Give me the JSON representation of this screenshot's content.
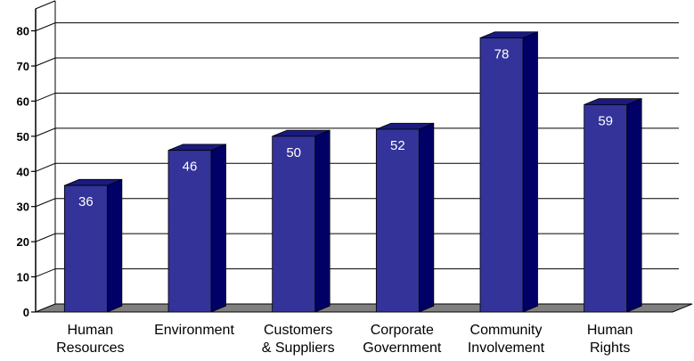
{
  "chart_data": {
    "type": "bar",
    "title": "",
    "xlabel": "",
    "ylabel": "",
    "categories": [
      [
        "Human",
        "Resources"
      ],
      [
        "Environment"
      ],
      [
        "Customers",
        "& Suppliers"
      ],
      [
        "Corporate",
        "Government"
      ],
      [
        "Community",
        "Involvement"
      ],
      [
        "Human",
        "Rights"
      ]
    ],
    "values": [
      36,
      46,
      50,
      52,
      78,
      59
    ],
    "data_labels": [
      "36",
      "46",
      "50",
      "52",
      "78",
      "59"
    ],
    "ylim": [
      0,
      85
    ],
    "yticks": [
      0,
      10,
      20,
      30,
      40,
      50,
      60,
      70,
      80
    ],
    "ytick_labels": [
      "0",
      "10",
      "20",
      "30",
      "40",
      "50",
      "60",
      "70",
      "80"
    ],
    "grid": true,
    "legend": "none",
    "three_d": true,
    "colors": {
      "bar_front": "#333399",
      "bar_side": "#000066",
      "bar_top": "#1a1a80",
      "floor": "#808080",
      "grid": "#000000",
      "data_label": "#ffffff"
    }
  }
}
